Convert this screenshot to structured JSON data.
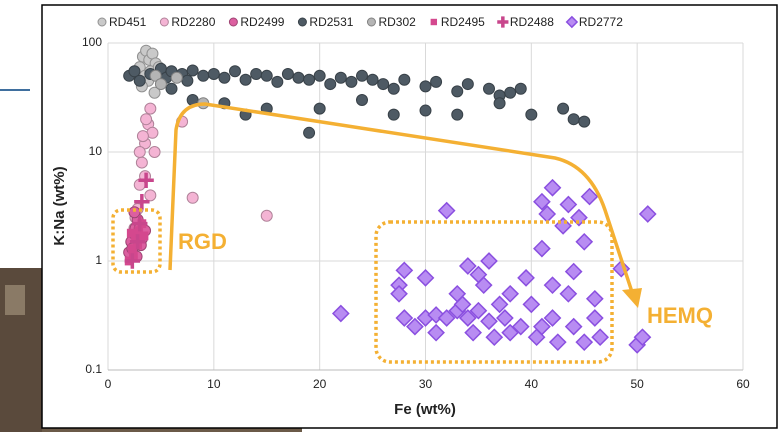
{
  "chart_data": {
    "type": "scatter",
    "xlabel": "Fe (wt%)",
    "ylabel": "K:Na (wt%)",
    "xlim": [
      0,
      60
    ],
    "xticks": [
      0,
      10,
      20,
      30,
      40,
      50,
      60
    ],
    "ylim": [
      0.1,
      100
    ],
    "yticks": [
      0.1,
      1,
      10,
      100
    ],
    "yscale": "log",
    "grid": true,
    "legend": "top",
    "annotations": [
      "RGD",
      "HEMQ"
    ],
    "series": [
      {
        "name": "RD451",
        "color": "#c9c9c9",
        "marker": "circle",
        "x": [
          3,
          3.3,
          3.6,
          3.9,
          4.2,
          4.5,
          3.5,
          4,
          3.8,
          4.8,
          5.5,
          3.2,
          4.4
        ],
        "values": [
          60,
          75,
          85,
          70,
          80,
          65,
          50,
          55,
          45,
          60,
          50,
          40,
          35
        ]
      },
      {
        "name": "RD2280",
        "color": "#f4b4d4",
        "marker": "circle",
        "x": [
          2.5,
          2.8,
          3,
          3.2,
          3.5,
          3.8,
          4,
          4.2,
          3,
          3.5,
          4,
          2.6,
          3.3,
          8,
          15,
          7,
          3.6,
          4.4
        ],
        "values": [
          2,
          3,
          5,
          8,
          12,
          18,
          25,
          15,
          10,
          6,
          4,
          2.5,
          14,
          3.8,
          2.6,
          19,
          20,
          10
        ]
      },
      {
        "name": "RD2499",
        "color": "#dc5fa0",
        "marker": "circle",
        "x": [
          2,
          2.2,
          2.4,
          2.6,
          2.8,
          3,
          3.2,
          2.3,
          2.7,
          3.1,
          3.5,
          2.5
        ],
        "values": [
          1.2,
          1.5,
          1.8,
          2,
          2.4,
          2,
          1.6,
          1.3,
          1.1,
          1.4,
          1.9,
          2.8
        ]
      },
      {
        "name": "RD2531",
        "color": "#4e5a64",
        "marker": "circle",
        "x": [
          2,
          2.5,
          3,
          4,
          5,
          5.5,
          6,
          7,
          7.5,
          8,
          9,
          10,
          11,
          12,
          13,
          14,
          15,
          16,
          17,
          18,
          19,
          20,
          21,
          22,
          23,
          24,
          25,
          26,
          27,
          28,
          30,
          31,
          33,
          34,
          36,
          38,
          39,
          43,
          44,
          45,
          6,
          8,
          11,
          13,
          15,
          19,
          20,
          24,
          27,
          30,
          33,
          37,
          37,
          40
        ],
        "values": [
          50,
          55,
          45,
          52,
          58,
          48,
          55,
          52,
          45,
          56,
          50,
          52,
          48,
          55,
          46,
          52,
          50,
          44,
          52,
          48,
          46,
          50,
          42,
          48,
          44,
          50,
          46,
          42,
          38,
          46,
          40,
          44,
          36,
          42,
          38,
          35,
          38,
          25,
          20,
          19,
          38,
          30,
          28,
          22,
          25,
          15,
          25,
          30,
          22,
          24,
          22,
          33,
          28,
          22
        ]
      },
      {
        "name": "RD302",
        "color": "#b5b5b5",
        "marker": "circle",
        "x": [
          4.5,
          5,
          9,
          6.5
        ],
        "values": [
          50,
          42,
          28,
          48
        ]
      },
      {
        "name": "RD2495",
        "color": "#d4488e",
        "marker": "square",
        "x": [
          2,
          2.3,
          2.6,
          2.9,
          3.2,
          2.4,
          2.8,
          3.4,
          2.2
        ],
        "values": [
          1,
          1.3,
          1.6,
          1.9,
          2.2,
          1.1,
          1.4,
          1.7,
          1.8
        ]
      },
      {
        "name": "RD2488",
        "color": "#c8468c",
        "marker": "plus",
        "x": [
          2.3,
          2.8,
          3.2,
          3.6,
          3
        ],
        "values": [
          1,
          1.5,
          3.5,
          5.5,
          2.2
        ]
      },
      {
        "name": "RD2772",
        "color": "#b88cf2",
        "marker": "diamond",
        "x": [
          22,
          28,
          27.5,
          27.5,
          28,
          29,
          30,
          30,
          31,
          31,
          32,
          32,
          33,
          33,
          33.5,
          34,
          34,
          34.5,
          35,
          35,
          35.5,
          36,
          36,
          36.5,
          37,
          37.5,
          38,
          38,
          39,
          39.5,
          40,
          40.5,
          41,
          41,
          41,
          41.5,
          42,
          42,
          42,
          42.5,
          43,
          43.5,
          43.5,
          44,
          44,
          44.5,
          45,
          45,
          45.5,
          46,
          46,
          46.5,
          48.5,
          50,
          50.5,
          51
        ],
        "values": [
          0.33,
          0.82,
          0.6,
          0.5,
          0.3,
          0.25,
          0.7,
          0.3,
          0.32,
          0.22,
          2.9,
          0.3,
          0.35,
          0.5,
          0.4,
          0.9,
          0.3,
          0.22,
          0.75,
          0.35,
          0.6,
          1,
          0.28,
          0.2,
          0.4,
          0.3,
          0.5,
          0.22,
          0.25,
          0.7,
          0.4,
          0.2,
          3.5,
          1.3,
          0.25,
          2.7,
          4.7,
          0.6,
          0.3,
          0.18,
          2.1,
          3.3,
          0.5,
          0.8,
          0.25,
          2.5,
          1.5,
          0.18,
          3.9,
          0.45,
          0.3,
          0.2,
          0.85,
          0.17,
          0.2,
          2.7
        ]
      }
    ]
  }
}
